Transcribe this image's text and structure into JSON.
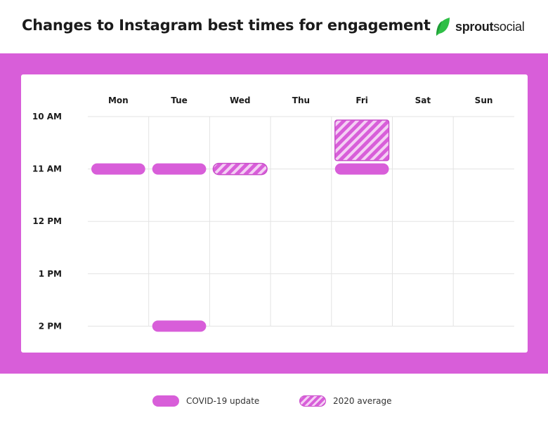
{
  "title": "Changes to Instagram best times for engagement",
  "logo": {
    "icon": "sprout-leaf-icon",
    "text_bold": "sprout",
    "text_regular": "social",
    "color": "#34c24a"
  },
  "colors": {
    "band": "#d85ed9",
    "bar": "#d85ed9",
    "hatch_light": "#f4d0f4"
  },
  "legend": [
    {
      "label": "COVID-19 update",
      "style": "solid"
    },
    {
      "label": "2020 average",
      "style": "hatched"
    }
  ],
  "chart_data": {
    "type": "heatmap",
    "days": [
      "Mon",
      "Tue",
      "Wed",
      "Thu",
      "Fri",
      "Sat",
      "Sun"
    ],
    "times": [
      "10 AM",
      "11 AM",
      "12 PM",
      "1 PM",
      "2 PM"
    ],
    "series": [
      {
        "name": "COVID-19 update",
        "style": "solid",
        "slots": [
          {
            "day": "Mon",
            "start": "11 AM",
            "end": "11 AM"
          },
          {
            "day": "Tue",
            "start": "11 AM",
            "end": "11 AM"
          },
          {
            "day": "Fri",
            "start": "11 AM",
            "end": "11 AM"
          },
          {
            "day": "Tue",
            "start": "2 PM",
            "end": "2 PM"
          }
        ]
      },
      {
        "name": "2020 average",
        "style": "hatched",
        "slots": [
          {
            "day": "Wed",
            "start": "11 AM",
            "end": "11 AM"
          },
          {
            "day": "Fri",
            "start": "10 AM",
            "end": "11 AM"
          }
        ]
      }
    ],
    "grid": true
  }
}
